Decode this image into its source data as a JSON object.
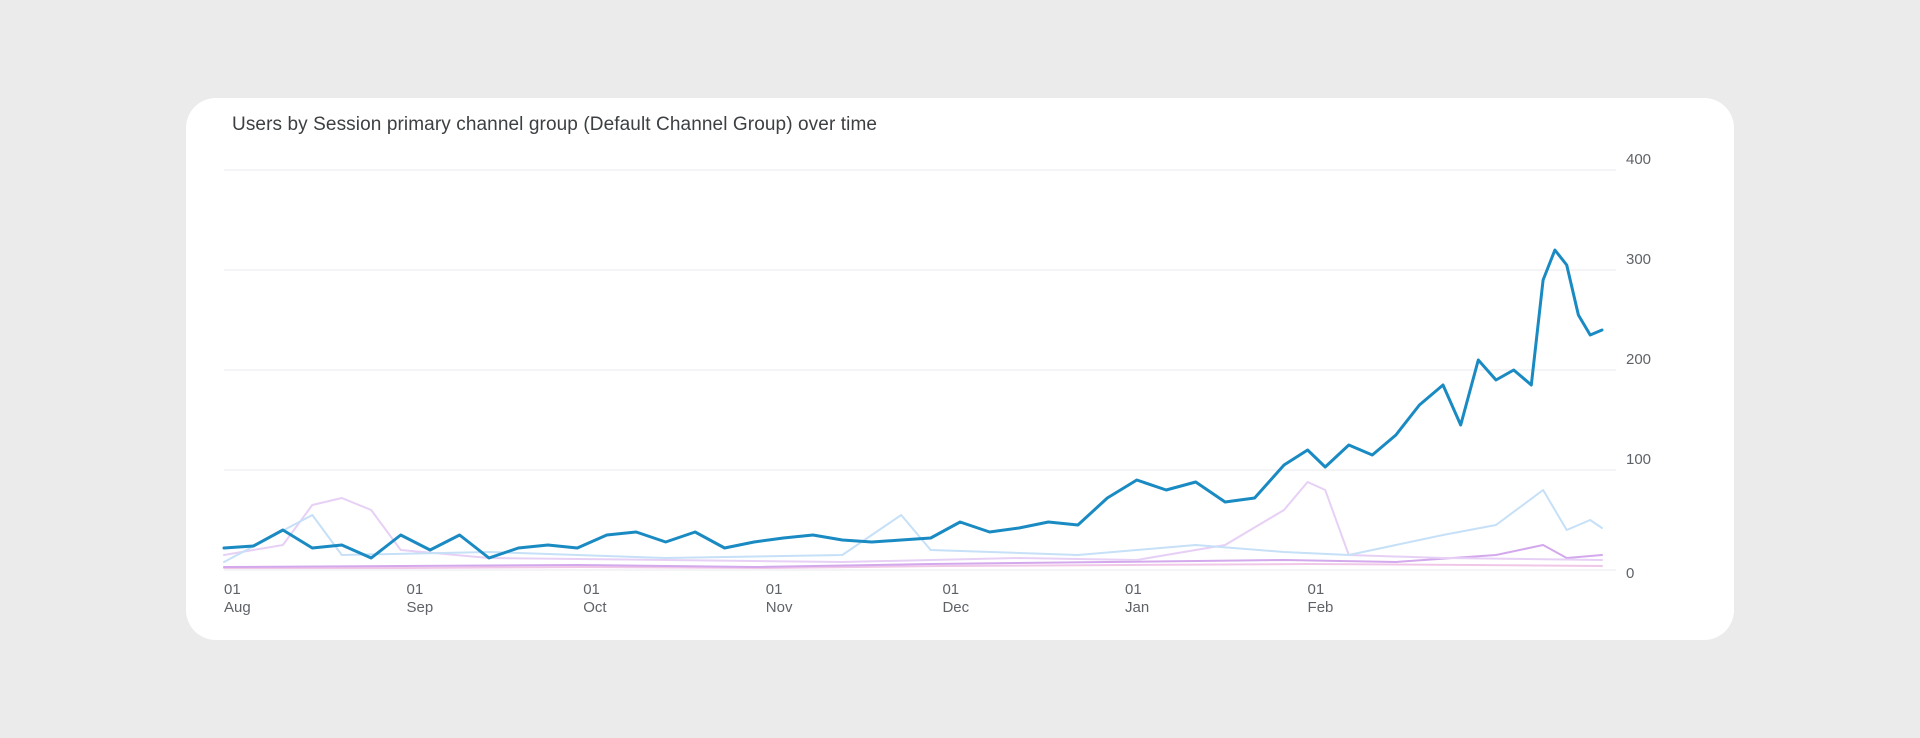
{
  "card": {
    "title": "Users by Session primary channel group (Default Channel Group) over time"
  },
  "chart_data": {
    "type": "line",
    "title": "Users by Session primary channel group (Default Channel Group) over time",
    "x_ticks": [
      {
        "day": "01",
        "month": "Aug"
      },
      {
        "day": "01",
        "month": "Sep"
      },
      {
        "day": "01",
        "month": "Oct"
      },
      {
        "day": "01",
        "month": "Nov"
      },
      {
        "day": "01",
        "month": "Dec"
      },
      {
        "day": "01",
        "month": "Jan"
      },
      {
        "day": "01",
        "month": "Feb"
      }
    ],
    "y_ticks": [
      "400",
      "300",
      "200",
      "100",
      "0"
    ],
    "ylim": [
      0,
      400
    ],
    "grid": true,
    "y_axis_side": "right",
    "series_points": [
      {
        "color": "#1a8ac2",
        "width": 3,
        "points": [
          [
            "Aug 1",
            22
          ],
          [
            "Aug 6",
            24
          ],
          [
            "Aug 11",
            40
          ],
          [
            "Aug 16",
            22
          ],
          [
            "Aug 21",
            25
          ],
          [
            "Aug 26",
            12
          ],
          [
            "Aug 31",
            35
          ],
          [
            "Sep 5",
            20
          ],
          [
            "Sep 10",
            35
          ],
          [
            "Sep 15",
            12
          ],
          [
            "Sep 20",
            22
          ],
          [
            "Sep 25",
            25
          ],
          [
            "Sep 30",
            22
          ],
          [
            "Oct 5",
            35
          ],
          [
            "Oct 10",
            38
          ],
          [
            "Oct 15",
            28
          ],
          [
            "Oct 20",
            38
          ],
          [
            "Oct 25",
            22
          ],
          [
            "Oct 30",
            28
          ],
          [
            "Nov 4",
            32
          ],
          [
            "Nov 9",
            35
          ],
          [
            "Nov 14",
            30
          ],
          [
            "Nov 19",
            28
          ],
          [
            "Nov 24",
            30
          ],
          [
            "Nov 29",
            32
          ],
          [
            "Dec 4",
            48
          ],
          [
            "Dec 9",
            38
          ],
          [
            "Dec 14",
            42
          ],
          [
            "Dec 19",
            48
          ],
          [
            "Dec 24",
            45
          ],
          [
            "Dec 29",
            72
          ],
          [
            "Jan 3",
            90
          ],
          [
            "Jan 8",
            80
          ],
          [
            "Jan 13",
            88
          ],
          [
            "Jan 18",
            68
          ],
          [
            "Jan 23",
            72
          ],
          [
            "Jan 28",
            105
          ],
          [
            "Feb 1",
            120
          ],
          [
            "Feb 4",
            103
          ],
          [
            "Feb 8",
            125
          ],
          [
            "Feb 12",
            115
          ],
          [
            "Feb 16",
            135
          ],
          [
            "Feb 20",
            165
          ],
          [
            "Feb 24",
            185
          ],
          [
            "Feb 27",
            145
          ],
          [
            "Mar 2",
            210
          ],
          [
            "Mar 5",
            190
          ],
          [
            "Mar 8",
            200
          ],
          [
            "Mar 11",
            185
          ],
          [
            "Mar 13",
            290
          ],
          [
            "Mar 15",
            320
          ],
          [
            "Mar 17",
            305
          ],
          [
            "Mar 19",
            255
          ],
          [
            "Mar 21",
            235
          ],
          [
            "Mar 23",
            240
          ]
        ]
      },
      {
        "color": "#c6e0f7",
        "width": 2,
        "points": [
          [
            "Aug 1",
            8
          ],
          [
            "Aug 16",
            55
          ],
          [
            "Aug 21",
            15
          ],
          [
            "Sep 15",
            18
          ],
          [
            "Oct 15",
            12
          ],
          [
            "Nov 14",
            15
          ],
          [
            "Nov 24",
            55
          ],
          [
            "Nov 29",
            20
          ],
          [
            "Dec 24",
            15
          ],
          [
            "Jan 13",
            25
          ],
          [
            "Jan 28",
            18
          ],
          [
            "Feb 8",
            15
          ],
          [
            "Feb 24",
            35
          ],
          [
            "Mar 5",
            45
          ],
          [
            "Mar 13",
            80
          ],
          [
            "Mar 17",
            40
          ],
          [
            "Mar 21",
            50
          ],
          [
            "Mar 23",
            42
          ]
        ]
      },
      {
        "color": "#e7d0f5",
        "width": 2,
        "points": [
          [
            "Aug 1",
            15
          ],
          [
            "Aug 11",
            25
          ],
          [
            "Aug 16",
            65
          ],
          [
            "Aug 21",
            72
          ],
          [
            "Aug 26",
            60
          ],
          [
            "Aug 31",
            20
          ],
          [
            "Sep 15",
            12
          ],
          [
            "Oct 15",
            10
          ],
          [
            "Nov 14",
            8
          ],
          [
            "Dec 14",
            12
          ],
          [
            "Jan 3",
            10
          ],
          [
            "Jan 18",
            25
          ],
          [
            "Jan 28",
            60
          ],
          [
            "Feb 1",
            88
          ],
          [
            "Feb 4",
            80
          ],
          [
            "Feb 8",
            15
          ],
          [
            "Feb 24",
            12
          ],
          [
            "Mar 23",
            10
          ]
        ]
      },
      {
        "color": "#d3a8ec",
        "width": 2,
        "points": [
          [
            "Aug 1",
            3
          ],
          [
            "Aug 31",
            4
          ],
          [
            "Sep 30",
            5
          ],
          [
            "Oct 30",
            3
          ],
          [
            "Nov 29",
            6
          ],
          [
            "Dec 29",
            8
          ],
          [
            "Jan 28",
            10
          ],
          [
            "Feb 16",
            8
          ],
          [
            "Mar 5",
            15
          ],
          [
            "Mar 13",
            25
          ],
          [
            "Mar 17",
            12
          ],
          [
            "Mar 23",
            15
          ]
        ]
      },
      {
        "color": "#f1c7e8",
        "width": 2,
        "points": [
          [
            "Aug 1",
            2
          ],
          [
            "Sep 1",
            2
          ],
          [
            "Oct 1",
            3
          ],
          [
            "Nov 1",
            2
          ],
          [
            "Dec 1",
            4
          ],
          [
            "Jan 1",
            5
          ],
          [
            "Feb 1",
            6
          ],
          [
            "Mar 1",
            5
          ],
          [
            "Mar 23",
            4
          ]
        ]
      }
    ]
  }
}
